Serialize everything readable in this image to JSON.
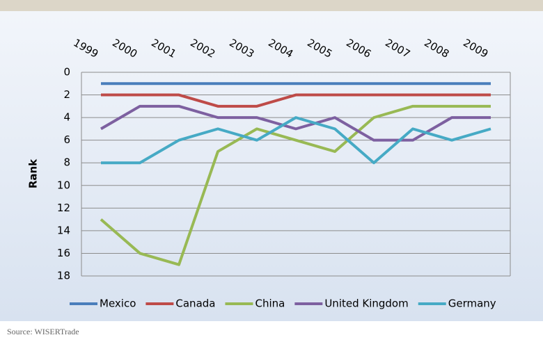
{
  "chart_data": {
    "type": "line",
    "y_label": "Rank",
    "source": "Source: WISERTrade",
    "categories": [
      "1999",
      "2000",
      "2001",
      "2002",
      "2003",
      "2004",
      "2005",
      "2006",
      "2007",
      "2008",
      "2009"
    ],
    "series": [
      {
        "name": "Mexico",
        "color": "#4a7ebb",
        "values": [
          1,
          1,
          1,
          1,
          1,
          1,
          1,
          1,
          1,
          1,
          1
        ]
      },
      {
        "name": "Canada",
        "color": "#be4b48",
        "values": [
          2,
          2,
          2,
          3,
          3,
          2,
          2,
          2,
          2,
          2,
          2
        ]
      },
      {
        "name": "China",
        "color": "#98b954",
        "values": [
          13,
          16,
          17,
          7,
          5,
          6,
          7,
          4,
          3,
          3,
          3
        ]
      },
      {
        "name": "United Kingdom",
        "color": "#7d60a0",
        "values": [
          5,
          3,
          3,
          4,
          4,
          5,
          4,
          6,
          6,
          4,
          4
        ]
      },
      {
        "name": "Germany",
        "color": "#46aac5",
        "values": [
          8,
          8,
          6,
          5,
          6,
          4,
          5,
          8,
          5,
          6,
          5
        ]
      }
    ],
    "ylim": [
      0,
      18
    ],
    "yticks": [
      0,
      2,
      4,
      6,
      8,
      10,
      12,
      14,
      16,
      18
    ],
    "y_inverted": true,
    "grid": true,
    "legend": "bottom"
  }
}
